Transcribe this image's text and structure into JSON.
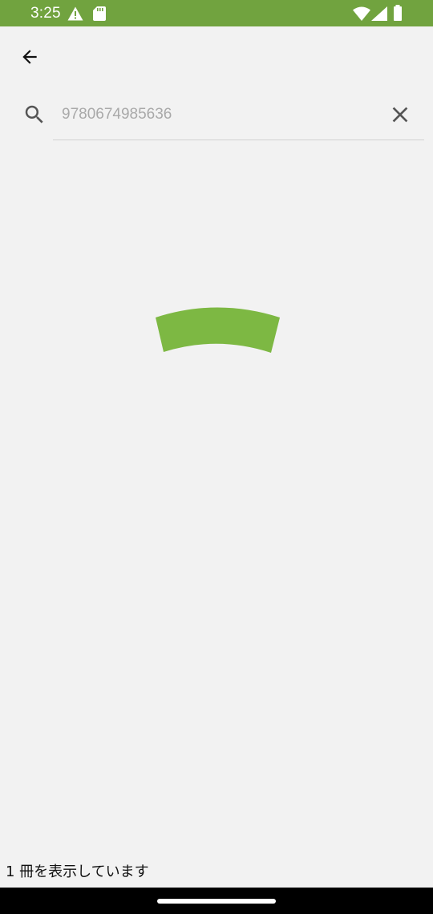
{
  "status_bar": {
    "time": "3:25",
    "background_color": "#71a33f",
    "icons": [
      "warning-icon",
      "sd-card-icon",
      "wifi-icon",
      "cellular-signal-icon",
      "battery-icon"
    ]
  },
  "toolbar": {
    "back_icon": "arrow-back-icon"
  },
  "search": {
    "placeholder": "9780674985636",
    "value": "",
    "search_icon": "search-icon",
    "clear_icon": "close-icon"
  },
  "loading": {
    "indicator": "progress-spinner",
    "color": "#7db843"
  },
  "footer": {
    "result_count_text": "1 冊を表示しています"
  },
  "nav_bar": {
    "handle": "home-gesture-handle"
  }
}
